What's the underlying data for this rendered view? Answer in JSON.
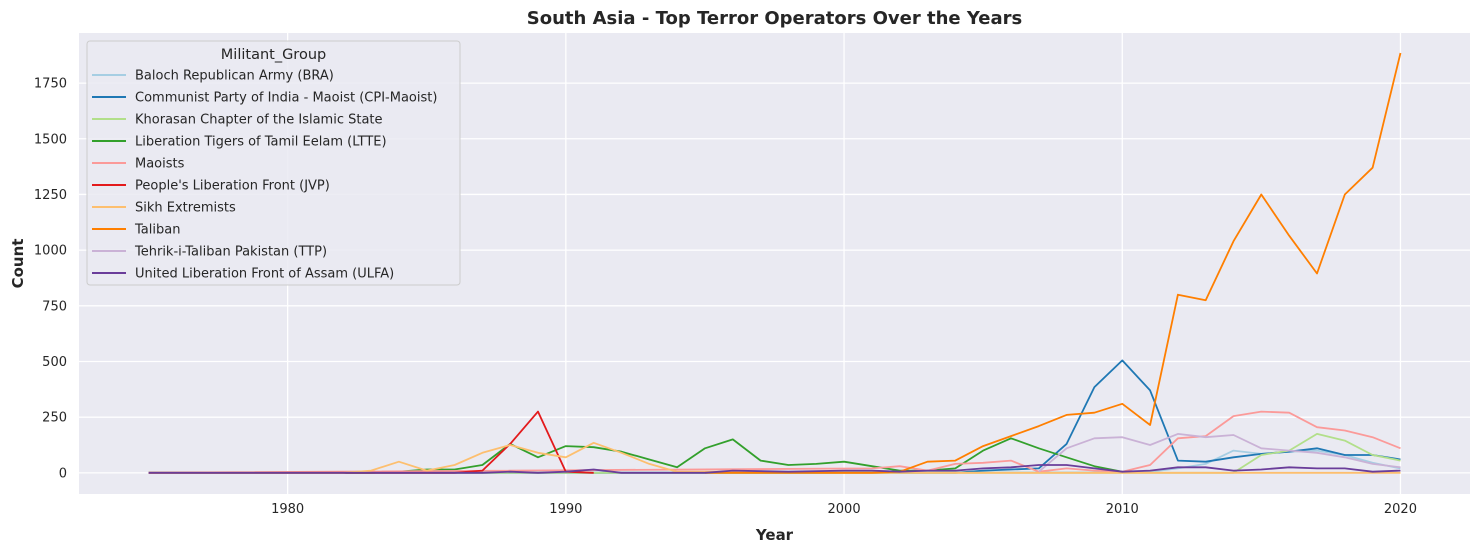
{
  "chart_data": {
    "type": "line",
    "title": "South Asia - Top Terror Operators Over the Years",
    "xlabel": "Year",
    "ylabel": "Count",
    "xlim": [
      1972.5,
      2022.5
    ],
    "ylim": [
      -95,
      1975
    ],
    "xticks": [
      1980,
      1990,
      2000,
      2010,
      2020
    ],
    "yticks": [
      0,
      250,
      500,
      750,
      1000,
      1250,
      1500,
      1750
    ],
    "grid": true,
    "legend": {
      "title": "Militant_Group",
      "placement": "top-left"
    },
    "series": [
      {
        "name": "Baloch Republican Army (BRA)",
        "color": "#a6cee3",
        "points": [
          [
            1975,
            0
          ],
          [
            2010,
            2
          ],
          [
            2011,
            5
          ],
          [
            2012,
            20
          ],
          [
            2013,
            40
          ],
          [
            2014,
            100
          ],
          [
            2015,
            85
          ],
          [
            2016,
            95
          ],
          [
            2017,
            100
          ],
          [
            2018,
            80
          ],
          [
            2019,
            45
          ],
          [
            2020,
            20
          ]
        ]
      },
      {
        "name": "Communist Party of India - Maoist (CPI-Maoist)",
        "color": "#1f78b4",
        "points": [
          [
            1975,
            0
          ],
          [
            2004,
            0
          ],
          [
            2005,
            10
          ],
          [
            2006,
            15
          ],
          [
            2007,
            20
          ],
          [
            2008,
            130
          ],
          [
            2009,
            385
          ],
          [
            2010,
            505
          ],
          [
            2011,
            370
          ],
          [
            2012,
            55
          ],
          [
            2013,
            50
          ],
          [
            2014,
            70
          ],
          [
            2015,
            85
          ],
          [
            2016,
            95
          ],
          [
            2017,
            110
          ],
          [
            2018,
            80
          ],
          [
            2019,
            80
          ],
          [
            2020,
            60
          ]
        ]
      },
      {
        "name": "Khorasan Chapter of the Islamic State",
        "color": "#b2df8a",
        "points": [
          [
            1975,
            0
          ],
          [
            2014,
            0
          ],
          [
            2015,
            80
          ],
          [
            2016,
            100
          ],
          [
            2017,
            175
          ],
          [
            2018,
            145
          ],
          [
            2019,
            80
          ],
          [
            2020,
            55
          ]
        ]
      },
      {
        "name": "Liberation Tigers of Tamil Eelam (LTTE)",
        "color": "#33a02c",
        "points": [
          [
            1975,
            0
          ],
          [
            1983,
            0
          ],
          [
            1984,
            5
          ],
          [
            1985,
            15
          ],
          [
            1986,
            15
          ],
          [
            1987,
            35
          ],
          [
            1988,
            130
          ],
          [
            1989,
            70
          ],
          [
            1990,
            120
          ],
          [
            1991,
            115
          ],
          [
            1992,
            95
          ],
          [
            1993,
            60
          ],
          [
            1994,
            25
          ],
          [
            1995,
            110
          ],
          [
            1996,
            150
          ],
          [
            1997,
            55
          ],
          [
            1998,
            35
          ],
          [
            1999,
            40
          ],
          [
            2000,
            50
          ],
          [
            2001,
            30
          ],
          [
            2002,
            10
          ],
          [
            2003,
            10
          ],
          [
            2004,
            20
          ],
          [
            2005,
            100
          ],
          [
            2006,
            155
          ],
          [
            2007,
            110
          ],
          [
            2008,
            70
          ],
          [
            2009,
            30
          ],
          [
            2010,
            5
          ]
        ]
      },
      {
        "name": "Maoists",
        "color": "#fb9a99",
        "points": [
          [
            1975,
            0
          ],
          [
            2001,
            20
          ],
          [
            2002,
            30
          ],
          [
            2003,
            10
          ],
          [
            2004,
            40
          ],
          [
            2005,
            45
          ],
          [
            2006,
            55
          ],
          [
            2007,
            5
          ],
          [
            2008,
            20
          ],
          [
            2009,
            10
          ],
          [
            2010,
            5
          ],
          [
            2011,
            35
          ],
          [
            2012,
            155
          ],
          [
            2013,
            165
          ],
          [
            2014,
            255
          ],
          [
            2015,
            275
          ],
          [
            2016,
            270
          ],
          [
            2017,
            205
          ],
          [
            2018,
            190
          ],
          [
            2019,
            160
          ],
          [
            2020,
            110
          ]
        ]
      },
      {
        "name": "People's Liberation Front (JVP)",
        "color": "#e31a1c",
        "points": [
          [
            1975,
            0
          ],
          [
            1986,
            0
          ],
          [
            1987,
            10
          ],
          [
            1988,
            130
          ],
          [
            1989,
            275
          ],
          [
            1990,
            5
          ],
          [
            1991,
            0
          ]
        ]
      },
      {
        "name": "Sikh Extremists",
        "color": "#fdbf6f",
        "points": [
          [
            1975,
            0
          ],
          [
            1982,
            0
          ],
          [
            1983,
            10
          ],
          [
            1984,
            50
          ],
          [
            1985,
            10
          ],
          [
            1986,
            35
          ],
          [
            1987,
            90
          ],
          [
            1988,
            125
          ],
          [
            1989,
            90
          ],
          [
            1990,
            70
          ],
          [
            1991,
            135
          ],
          [
            1992,
            90
          ],
          [
            1993,
            40
          ],
          [
            1994,
            5
          ],
          [
            1995,
            5
          ],
          [
            2000,
            0
          ],
          [
            2020,
            0
          ]
        ]
      },
      {
        "name": "Taliban",
        "color": "#ff7f00",
        "points": [
          [
            1995,
            0
          ],
          [
            2001,
            0
          ],
          [
            2002,
            5
          ],
          [
            2003,
            50
          ],
          [
            2004,
            55
          ],
          [
            2005,
            120
          ],
          [
            2006,
            165
          ],
          [
            2007,
            210
          ],
          [
            2008,
            260
          ],
          [
            2009,
            270
          ],
          [
            2010,
            310
          ],
          [
            2011,
            215
          ],
          [
            2012,
            800
          ],
          [
            2013,
            775
          ],
          [
            2014,
            1040
          ],
          [
            2015,
            1250
          ],
          [
            2016,
            1065
          ],
          [
            2017,
            895
          ],
          [
            2018,
            1250
          ],
          [
            2019,
            1370
          ],
          [
            2020,
            1885
          ]
        ]
      },
      {
        "name": "Tehrik-i-Taliban Pakistan (TTP)",
        "color": "#cab2d6",
        "points": [
          [
            2007,
            5
          ],
          [
            2008,
            110
          ],
          [
            2009,
            155
          ],
          [
            2010,
            160
          ],
          [
            2011,
            125
          ],
          [
            2012,
            175
          ],
          [
            2013,
            160
          ],
          [
            2014,
            170
          ],
          [
            2015,
            110
          ],
          [
            2016,
            100
          ],
          [
            2017,
            90
          ],
          [
            2018,
            70
          ],
          [
            2019,
            40
          ],
          [
            2020,
            25
          ]
        ]
      },
      {
        "name": "United Liberation Front of Assam (ULFA)",
        "color": "#6a3d9a",
        "points": [
          [
            1975,
            0
          ],
          [
            1986,
            0
          ],
          [
            1987,
            0
          ],
          [
            1988,
            5
          ],
          [
            1989,
            0
          ],
          [
            1990,
            5
          ],
          [
            1991,
            15
          ],
          [
            1992,
            0
          ],
          [
            1995,
            0
          ],
          [
            1996,
            10
          ],
          [
            1998,
            5
          ],
          [
            2000,
            10
          ],
          [
            2001,
            10
          ],
          [
            2002,
            5
          ],
          [
            2003,
            10
          ],
          [
            2004,
            10
          ],
          [
            2005,
            20
          ],
          [
            2006,
            25
          ],
          [
            2007,
            35
          ],
          [
            2008,
            35
          ],
          [
            2009,
            20
          ],
          [
            2010,
            5
          ],
          [
            2011,
            10
          ],
          [
            2012,
            25
          ],
          [
            2013,
            25
          ],
          [
            2014,
            10
          ],
          [
            2015,
            15
          ],
          [
            2016,
            25
          ],
          [
            2017,
            20
          ],
          [
            2018,
            20
          ],
          [
            2019,
            5
          ],
          [
            2020,
            10
          ]
        ]
      }
    ]
  }
}
